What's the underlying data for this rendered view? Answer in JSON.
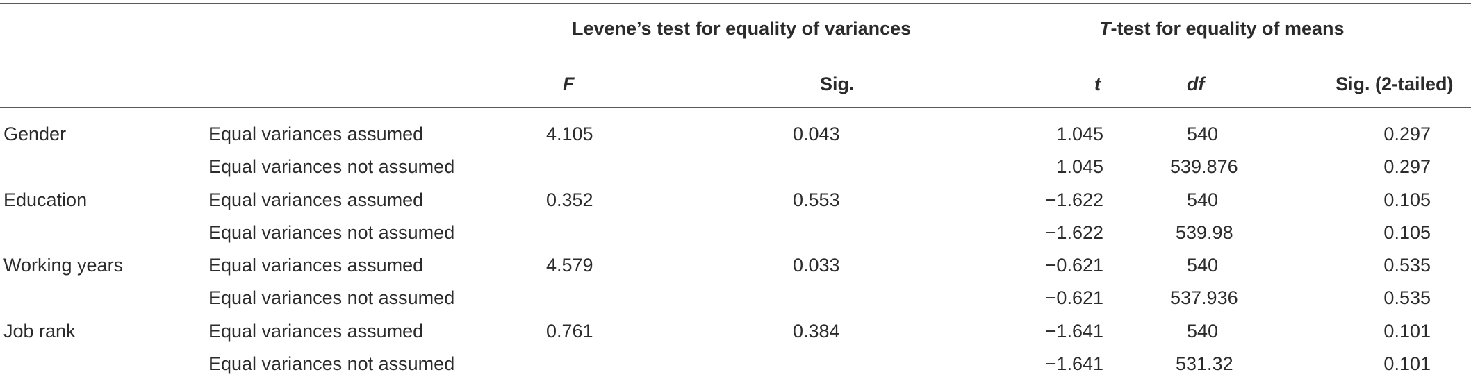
{
  "table": {
    "group_headers": {
      "levene": "Levene’s test for equality of variances",
      "ttest_italic": "T",
      "ttest_rest": "-test for equality of means"
    },
    "column_headers": {
      "F": "F",
      "sig": "Sig.",
      "t": "t",
      "df": "df",
      "sig2": "Sig. (2-tailed)"
    },
    "rows": [
      {
        "variable": "Gender",
        "assumption": "Equal variances assumed",
        "F": "4.105",
        "sig": "0.043",
        "t": "1.045",
        "df": "540",
        "sig2": "0.297"
      },
      {
        "variable": "",
        "assumption": "Equal variances not assumed",
        "F": "",
        "sig": "",
        "t": "1.045",
        "df": "539.876",
        "sig2": "0.297"
      },
      {
        "variable": "Education",
        "assumption": "Equal variances assumed",
        "F": "0.352",
        "sig": "0.553",
        "t": "−1.622",
        "df": "540",
        "sig2": "0.105"
      },
      {
        "variable": "",
        "assumption": "Equal variances not assumed",
        "F": "",
        "sig": "",
        "t": "−1.622",
        "df": "539.98",
        "sig2": "0.105"
      },
      {
        "variable": "Working years",
        "assumption": "Equal variances assumed",
        "F": "4.579",
        "sig": "0.033",
        "t": "−0.621",
        "df": "540",
        "sig2": "0.535"
      },
      {
        "variable": "",
        "assumption": "Equal variances not assumed",
        "F": "",
        "sig": "",
        "t": "−0.621",
        "df": "537.936",
        "sig2": "0.535"
      },
      {
        "variable": "Job rank",
        "assumption": "Equal variances assumed",
        "F": "0.761",
        "sig": "0.384",
        "t": "−1.641",
        "df": "540",
        "sig2": "0.101"
      },
      {
        "variable": "",
        "assumption": "Equal variances not assumed",
        "F": "",
        "sig": "",
        "t": "−1.641",
        "df": "531.32",
        "sig2": "0.101"
      }
    ]
  }
}
